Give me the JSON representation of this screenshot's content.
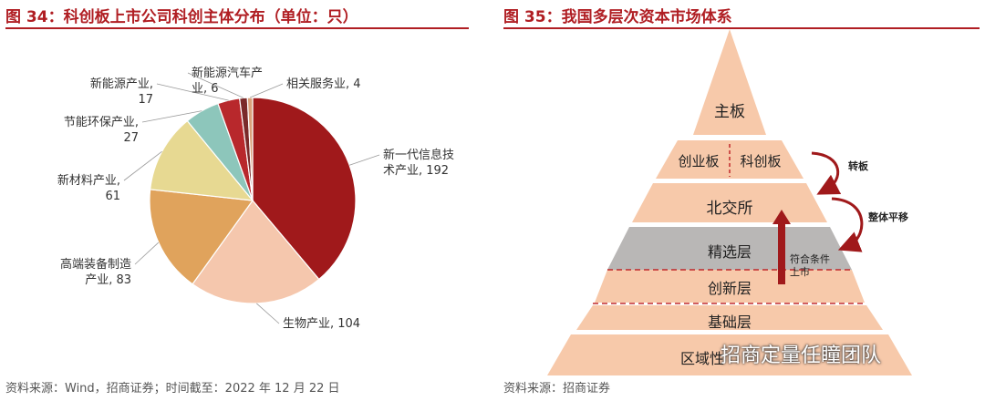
{
  "left": {
    "title": "图 34：科创板上市公司科创主体分布（单位：只）",
    "source": "资料来源：Wind，招商证券；时间截至：2022 年 12 月 22 日"
  },
  "right": {
    "title": "图 35：我国多层次资本市场体系",
    "source": "资料来源：招商证券",
    "arrow_upgrade": "转板",
    "arrow_shift": "整体平移",
    "arrow_listing": "符合条件上市",
    "layers": [
      "主板",
      "创业板",
      "科创板",
      "北交所",
      "精选层",
      "创新层",
      "基础层",
      "区域性"
    ]
  },
  "watermark": "招商定量任瞳团队",
  "chart_data": {
    "type": "pie",
    "title": "",
    "slices": [
      {
        "label": "新一代信息技术产业",
        "value": 192,
        "color": "#a0191b"
      },
      {
        "label": "生物产业",
        "value": 104,
        "color": "#f5c7ad"
      },
      {
        "label": "高端装备制造产业",
        "value": 83,
        "color": "#e0a35c"
      },
      {
        "label": "新材料产业",
        "value": 61,
        "color": "#e7d992"
      },
      {
        "label": "节能环保产业",
        "value": 27,
        "color": "#8dc6bb"
      },
      {
        "label": "新能源产业",
        "value": 17,
        "color": "#b8282c"
      },
      {
        "label": "新能源汽车产业",
        "value": 6,
        "color": "#7a2a2a"
      },
      {
        "label": "相关服务业",
        "value": 4,
        "color": "#d9a07a"
      }
    ]
  }
}
